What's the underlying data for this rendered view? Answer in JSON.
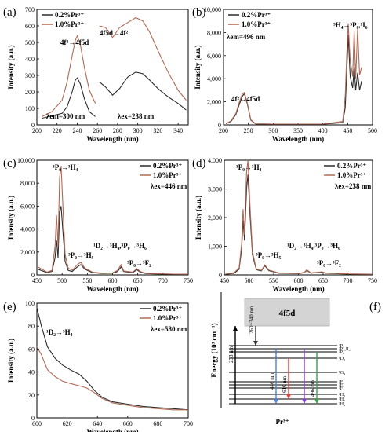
{
  "colors": {
    "series_0_2": "#2b2b2b",
    "series_1_0": "#b06a55",
    "band_4f5d": "#d4d4d4",
    "level_line": "#000000",
    "arrow_238": "#000000",
    "arrow_260_340": "#333333",
    "arrow_446": "#4d7fe0",
    "arrow_610": "#e0403a",
    "arrow_496": "#3aa14a",
    "arrow_violet": "#8a3fd0"
  },
  "chart_data": [
    {
      "panel": "(a)",
      "type": "line",
      "xlabel": "Wavelength (nm)",
      "ylabel": "Intensity (a.u.)",
      "xlim": [
        200,
        350
      ],
      "ylim": [
        0,
        700
      ],
      "xticks": [
        200,
        220,
        240,
        260,
        280,
        300,
        320,
        340
      ],
      "yticks": [
        0,
        100,
        200,
        300,
        400,
        500,
        600,
        700
      ],
      "legend": "top-left",
      "annotations": [
        "4f²→4f5d",
        "4f5d→4f²",
        "λem=300 nm",
        "λex=238 nm"
      ],
      "series": [
        {
          "name": "0.2%Pr³⁺",
          "segment": "excitation",
          "x": [
            205,
            215,
            225,
            230,
            235,
            238,
            240,
            243,
            247,
            252,
            258
          ],
          "values": [
            40,
            55,
            70,
            110,
            200,
            270,
            285,
            250,
            160,
            80,
            50
          ]
        },
        {
          "name": "1.0%Pr³⁺",
          "segment": "excitation",
          "x": [
            205,
            215,
            225,
            230,
            235,
            238,
            240,
            243,
            247,
            252,
            258
          ],
          "values": [
            50,
            80,
            150,
            260,
            420,
            510,
            540,
            490,
            350,
            210,
            130
          ]
        },
        {
          "name": "0.2%Pr³⁺",
          "segment": "emission",
          "x": [
            262,
            268,
            275,
            282,
            290,
            298,
            305,
            312,
            320,
            330,
            340,
            348
          ],
          "values": [
            260,
            230,
            180,
            220,
            290,
            320,
            310,
            270,
            220,
            170,
            130,
            90
          ]
        },
        {
          "name": "1.0%Pr³⁺",
          "segment": "emission",
          "x": [
            262,
            268,
            275,
            282,
            290,
            298,
            305,
            312,
            320,
            330,
            340,
            348
          ],
          "values": [
            600,
            590,
            530,
            590,
            620,
            650,
            630,
            560,
            450,
            320,
            210,
            150
          ]
        }
      ]
    },
    {
      "panel": "(b)",
      "type": "line",
      "xlabel": "Wavelength (nm)",
      "ylabel": "Intensity (a.u.)",
      "xlim": [
        200,
        500
      ],
      "ylim": [
        0,
        10000
      ],
      "xticks": [
        200,
        250,
        300,
        350,
        400,
        450,
        500
      ],
      "yticks": [
        0,
        2000,
        4000,
        6000,
        8000,
        10000
      ],
      "legend": "top-left",
      "annotations": [
        "λem=496 nm",
        "4f²→4f5d",
        "³H₄→³P₀,¹I₆"
      ],
      "series": [
        {
          "name": "0.2%Pr³⁺",
          "x": [
            205,
            215,
            225,
            232,
            238,
            242,
            248,
            255,
            265,
            300,
            400,
            440,
            445,
            448,
            451,
            455,
            460,
            463,
            466,
            470,
            474,
            478
          ],
          "values": [
            100,
            300,
            900,
            1800,
            2500,
            2700,
            1800,
            400,
            80,
            60,
            60,
            200,
            1500,
            4500,
            7800,
            4200,
            3200,
            5000,
            3000,
            4500,
            3000,
            3800
          ]
        },
        {
          "name": "1.0%Pr³⁺",
          "x": [
            205,
            215,
            225,
            232,
            238,
            242,
            248,
            255,
            265,
            300,
            400,
            440,
            445,
            448,
            451,
            455,
            460,
            463,
            466,
            470,
            474,
            478
          ],
          "values": [
            100,
            350,
            1000,
            2000,
            2700,
            2800,
            1900,
            450,
            90,
            70,
            70,
            300,
            2500,
            6000,
            8800,
            5600,
            4200,
            8200,
            4000,
            8300,
            4300,
            5000
          ]
        }
      ]
    },
    {
      "panel": "(c)",
      "type": "line",
      "xlabel": "Wavelength (nm)",
      "ylabel": "Intensity (a.u.)",
      "xlim": [
        450,
        750
      ],
      "ylim": [
        0,
        10000
      ],
      "xticks": [
        450,
        500,
        550,
        600,
        650,
        700,
        750
      ],
      "yticks": [
        0,
        2000,
        4000,
        6000,
        8000,
        10000
      ],
      "legend": "top-right",
      "annotations": [
        "λex=446 nm",
        "³P₀→³H₄",
        "³P₀→³H₅",
        "¹D₂→³H₄,³P₀→³H₆",
        "³P₀→³F₂"
      ],
      "series": [
        {
          "name": "0.2%Pr³⁺",
          "x": [
            452,
            470,
            480,
            486,
            489,
            492,
            495,
            498,
            502,
            506,
            512,
            520,
            530,
            537,
            545,
            560,
            580,
            600,
            610,
            617,
            622,
            640,
            648,
            655,
            665,
            690,
            720,
            748
          ],
          "values": [
            500,
            200,
            300,
            1500,
            3000,
            1500,
            5500,
            6000,
            3500,
            1200,
            400,
            300,
            700,
            900,
            500,
            200,
            120,
            150,
            300,
            700,
            300,
            200,
            450,
            250,
            120,
            80,
            60,
            50
          ]
        },
        {
          "name": "1.0%Pr³⁺",
          "x": [
            452,
            470,
            480,
            486,
            489,
            492,
            495,
            498,
            502,
            506,
            512,
            520,
            530,
            537,
            545,
            560,
            580,
            600,
            610,
            617,
            622,
            640,
            648,
            655,
            665,
            690,
            720,
            748
          ],
          "values": [
            700,
            250,
            400,
            2500,
            5200,
            2500,
            8500,
            9500,
            5500,
            1800,
            600,
            400,
            900,
            1100,
            600,
            250,
            150,
            180,
            400,
            900,
            350,
            250,
            550,
            300,
            150,
            100,
            70,
            60
          ]
        }
      ]
    },
    {
      "panel": "(d)",
      "type": "line",
      "xlabel": "Wavelength (nm)",
      "ylabel": "Intensity (a.u.)",
      "xlim": [
        450,
        750
      ],
      "ylim": [
        0,
        4000
      ],
      "xticks": [
        450,
        500,
        550,
        600,
        650,
        700,
        750
      ],
      "yticks": [
        0,
        1000,
        2000,
        3000,
        4000
      ],
      "legend": "top-right",
      "annotations": [
        "λex=238 nm",
        "³P₀→³H₄",
        "³P₀→³H₅",
        "¹D₂→³H₄,³P₀→³H₆",
        "³P₀→³F₂"
      ],
      "series": [
        {
          "name": "0.2%Pr³⁺",
          "x": [
            452,
            470,
            480,
            485,
            488,
            491,
            495,
            498,
            502,
            507,
            515,
            525,
            532,
            540,
            560,
            600,
            612,
            617,
            625,
            648,
            655,
            700,
            748
          ],
          "values": [
            20,
            60,
            200,
            900,
            1900,
            1200,
            3000,
            3500,
            2100,
            700,
            180,
            140,
            320,
            150,
            60,
            40,
            80,
            160,
            60,
            100,
            60,
            30,
            20
          ]
        },
        {
          "name": "1.0%Pr³⁺",
          "x": [
            452,
            470,
            480,
            485,
            488,
            491,
            495,
            498,
            502,
            507,
            515,
            525,
            532,
            540,
            560,
            600,
            612,
            617,
            625,
            648,
            655,
            700,
            748
          ],
          "values": [
            30,
            80,
            250,
            1100,
            2300,
            1400,
            3600,
            4000,
            2400,
            800,
            200,
            160,
            350,
            170,
            70,
            50,
            90,
            180,
            70,
            110,
            70,
            35,
            25
          ]
        }
      ]
    },
    {
      "panel": "(e)",
      "type": "line",
      "xlabel": "Wavelength (nm)",
      "ylabel": "Intensity (a.u.)",
      "xlim": [
        600,
        700
      ],
      "ylim": [
        0,
        100
      ],
      "xticks": [
        600,
        620,
        640,
        660,
        680,
        700
      ],
      "yticks": [
        0,
        20,
        40,
        60,
        80,
        100
      ],
      "legend": "top-right",
      "annotations": [
        "λex=580 nm",
        "¹D₂→³H₄"
      ],
      "series": [
        {
          "name": "0.2%Pr³⁺",
          "x": [
            600,
            603,
            607,
            612,
            617,
            622,
            628,
            633,
            638,
            643,
            650,
            660,
            670,
            680,
            690,
            700
          ],
          "values": [
            96,
            80,
            62,
            52,
            46,
            42,
            38,
            32,
            24,
            18,
            14,
            12,
            10,
            9,
            8,
            7
          ]
        },
        {
          "name": "1.0%Pr³⁺",
          "x": [
            600,
            603,
            607,
            612,
            617,
            622,
            628,
            633,
            638,
            643,
            650,
            660,
            670,
            680,
            690,
            700
          ],
          "values": [
            62,
            55,
            42,
            36,
            32,
            30,
            28,
            26,
            22,
            17,
            13,
            11,
            9,
            8,
            7,
            7
          ]
        }
      ]
    }
  ],
  "panel_f": {
    "label": "(f)",
    "ylabel": "Energy (10³ cm⁻¹)",
    "ion": "Pr³⁺",
    "band": "4f5d",
    "arrows": [
      "238 nm",
      "260~340 nm",
      "446 nm",
      "610 nm",
      "496 nm"
    ],
    "levels": [
      "³P₂",
      "³P₁,¹I₆",
      "³P₀",
      "¹D₂",
      "¹G₄",
      "³F₄",
      "³F₃",
      "³F₂",
      "³H₆",
      "³H₅",
      "³H₄"
    ]
  }
}
